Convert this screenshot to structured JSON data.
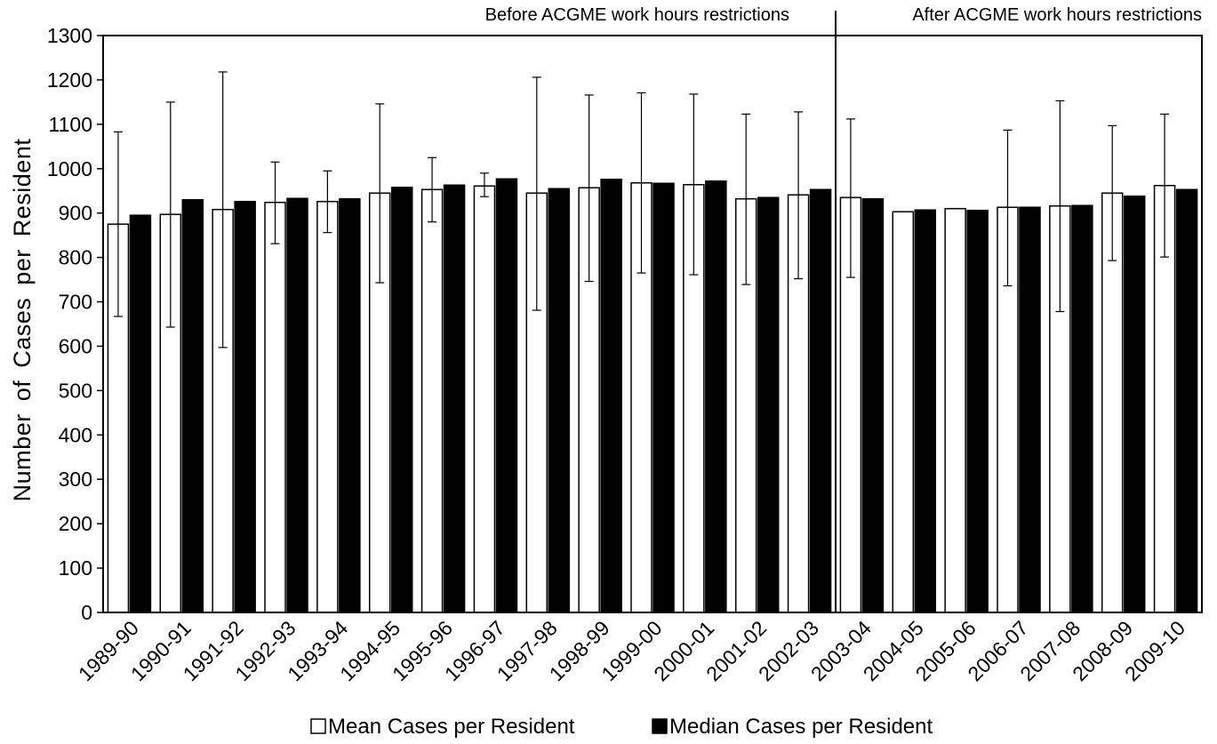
{
  "chart_data": {
    "type": "bar",
    "title": "",
    "xlabel": "",
    "ylabel": "Number of Cases per Resident",
    "ylim": [
      0,
      1300
    ],
    "yticks": [
      0,
      100,
      200,
      300,
      400,
      500,
      600,
      700,
      800,
      900,
      1000,
      1100,
      1200,
      1300
    ],
    "grid": false,
    "legend_position": "bottom",
    "categories": [
      "1989-90",
      "1990-91",
      "1991-92",
      "1992-93",
      "1993-94",
      "1994-95",
      "1995-96",
      "1996-97",
      "1997-98",
      "1998-99",
      "1999-00",
      "2000-01",
      "2001-02",
      "2002-03",
      "2003-04",
      "2004-05",
      "2005-06",
      "2006-07",
      "2007-08",
      "2008-09",
      "2009-10"
    ],
    "series": [
      {
        "name": "Mean Cases per Resident",
        "fill": "#ffffff",
        "values": [
          875,
          897,
          908,
          924,
          926,
          945,
          953,
          961,
          945,
          957,
          968,
          964,
          932,
          941,
          935,
          903,
          910,
          913,
          916,
          945,
          962
        ],
        "error_upper": [
          1083,
          1150,
          1218,
          1015,
          995,
          1146,
          1025,
          990,
          1206,
          1166,
          1171,
          1168,
          1123,
          1128,
          1112,
          null,
          null,
          1087,
          1153,
          1097,
          1123
        ],
        "error_lower": [
          667,
          643,
          597,
          831,
          856,
          743,
          880,
          937,
          681,
          746,
          765,
          761,
          739,
          752,
          755,
          null,
          null,
          736,
          678,
          793,
          801
        ]
      },
      {
        "name": "Median Cases per Resident",
        "fill": "#000000",
        "values": [
          895,
          930,
          926,
          933,
          932,
          958,
          963,
          977,
          955,
          976,
          967,
          972,
          935,
          953,
          932,
          907,
          906,
          913,
          917,
          938,
          953
        ]
      }
    ],
    "regions": [
      {
        "label": "Before ACGME work hours restrictions",
        "from": "1989-90",
        "to": "2002-03"
      },
      {
        "label": "After ACGME work hours restrictions",
        "from": "2003-04",
        "to": "2009-10"
      }
    ]
  }
}
